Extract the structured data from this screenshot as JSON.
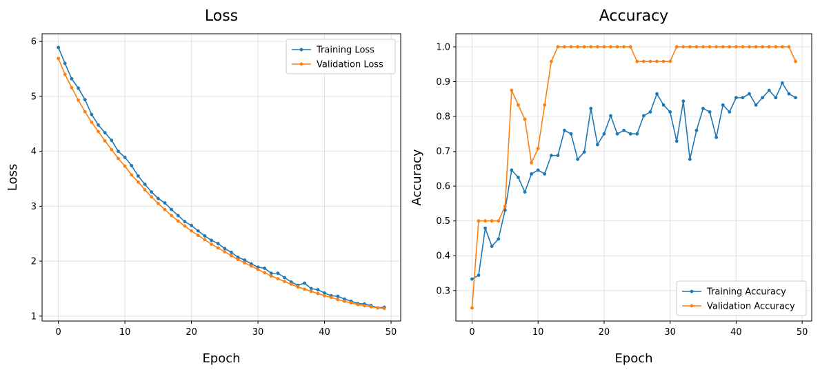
{
  "chart_data": [
    {
      "type": "line",
      "title": "Loss",
      "xlabel": "Epoch",
      "ylabel": "Loss",
      "xlim": [
        -2.45,
        51.45
      ],
      "ylim": [
        0.91,
        6.14
      ],
      "xticks": [
        0,
        10,
        20,
        30,
        40,
        50
      ],
      "yticks": [
        1,
        2,
        3,
        4,
        5,
        6
      ],
      "grid": true,
      "legend": "top-right",
      "x": [
        0,
        1,
        2,
        3,
        4,
        5,
        6,
        7,
        8,
        9,
        10,
        11,
        12,
        13,
        14,
        15,
        16,
        17,
        18,
        19,
        20,
        21,
        22,
        23,
        24,
        25,
        26,
        27,
        28,
        29,
        30,
        31,
        32,
        33,
        34,
        35,
        36,
        37,
        38,
        39,
        40,
        41,
        42,
        43,
        44,
        45,
        46,
        47,
        48,
        49
      ],
      "series": [
        {
          "name": "Training Loss",
          "color": "#1f77b4",
          "values": [
            5.89,
            5.6,
            5.32,
            5.15,
            4.94,
            4.67,
            4.48,
            4.34,
            4.2,
            4.0,
            3.89,
            3.74,
            3.55,
            3.4,
            3.26,
            3.14,
            3.06,
            2.94,
            2.83,
            2.72,
            2.65,
            2.55,
            2.46,
            2.38,
            2.32,
            2.23,
            2.16,
            2.07,
            2.02,
            1.95,
            1.89,
            1.87,
            1.78,
            1.78,
            1.7,
            1.62,
            1.56,
            1.6,
            1.5,
            1.48,
            1.42,
            1.37,
            1.36,
            1.31,
            1.27,
            1.23,
            1.22,
            1.19,
            1.15,
            1.16
          ]
        },
        {
          "name": "Validation Loss",
          "color": "#ff7f0e",
          "values": [
            5.69,
            5.4,
            5.16,
            4.93,
            4.72,
            4.53,
            4.36,
            4.19,
            4.03,
            3.87,
            3.73,
            3.57,
            3.44,
            3.3,
            3.17,
            3.05,
            2.94,
            2.83,
            2.73,
            2.64,
            2.55,
            2.47,
            2.39,
            2.31,
            2.24,
            2.17,
            2.1,
            2.03,
            1.97,
            1.91,
            1.85,
            1.79,
            1.73,
            1.68,
            1.63,
            1.58,
            1.53,
            1.49,
            1.45,
            1.41,
            1.37,
            1.34,
            1.3,
            1.27,
            1.24,
            1.21,
            1.19,
            1.17,
            1.15,
            1.14
          ]
        }
      ]
    },
    {
      "type": "line",
      "title": "Accuracy",
      "xlabel": "Epoch",
      "ylabel": "Accuracy",
      "xlim": [
        -2.45,
        51.45
      ],
      "ylim": [
        0.2125,
        1.0375
      ],
      "xticks": [
        0,
        10,
        20,
        30,
        40,
        50
      ],
      "yticks": [
        0.3,
        0.4,
        0.5,
        0.6,
        0.7,
        0.8,
        0.9,
        1.0
      ],
      "grid": true,
      "legend": "bottom-right",
      "x": [
        0,
        1,
        2,
        3,
        4,
        5,
        6,
        7,
        8,
        9,
        10,
        11,
        12,
        13,
        14,
        15,
        16,
        17,
        18,
        19,
        20,
        21,
        22,
        23,
        24,
        25,
        26,
        27,
        28,
        29,
        30,
        31,
        32,
        33,
        34,
        35,
        36,
        37,
        38,
        39,
        40,
        41,
        42,
        43,
        44,
        45,
        46,
        47,
        48,
        49
      ],
      "series": [
        {
          "name": "Training Accuracy",
          "color": "#1f77b4",
          "values": [
            0.333,
            0.344,
            0.479,
            0.427,
            0.448,
            0.531,
            0.646,
            0.625,
            0.583,
            0.635,
            0.646,
            0.635,
            0.688,
            0.688,
            0.76,
            0.75,
            0.677,
            0.698,
            0.823,
            0.719,
            0.75,
            0.802,
            0.75,
            0.76,
            0.75,
            0.75,
            0.802,
            0.813,
            0.865,
            0.833,
            0.813,
            0.729,
            0.844,
            0.677,
            0.76,
            0.823,
            0.813,
            0.74,
            0.833,
            0.813,
            0.854,
            0.854,
            0.865,
            0.833,
            0.854,
            0.875,
            0.854,
            0.896,
            0.865,
            0.854
          ]
        },
        {
          "name": "Validation Accuracy",
          "color": "#ff7f0e",
          "values": [
            0.25,
            0.5,
            0.5,
            0.5,
            0.5,
            0.542,
            0.875,
            0.833,
            0.792,
            0.667,
            0.708,
            0.833,
            0.958,
            1.0,
            1.0,
            1.0,
            1.0,
            1.0,
            1.0,
            1.0,
            1.0,
            1.0,
            1.0,
            1.0,
            1.0,
            0.958,
            0.958,
            0.958,
            0.958,
            0.958,
            0.958,
            1.0,
            1.0,
            1.0,
            1.0,
            1.0,
            1.0,
            1.0,
            1.0,
            1.0,
            1.0,
            1.0,
            1.0,
            1.0,
            1.0,
            1.0,
            1.0,
            1.0,
            1.0,
            0.958
          ]
        }
      ]
    }
  ]
}
